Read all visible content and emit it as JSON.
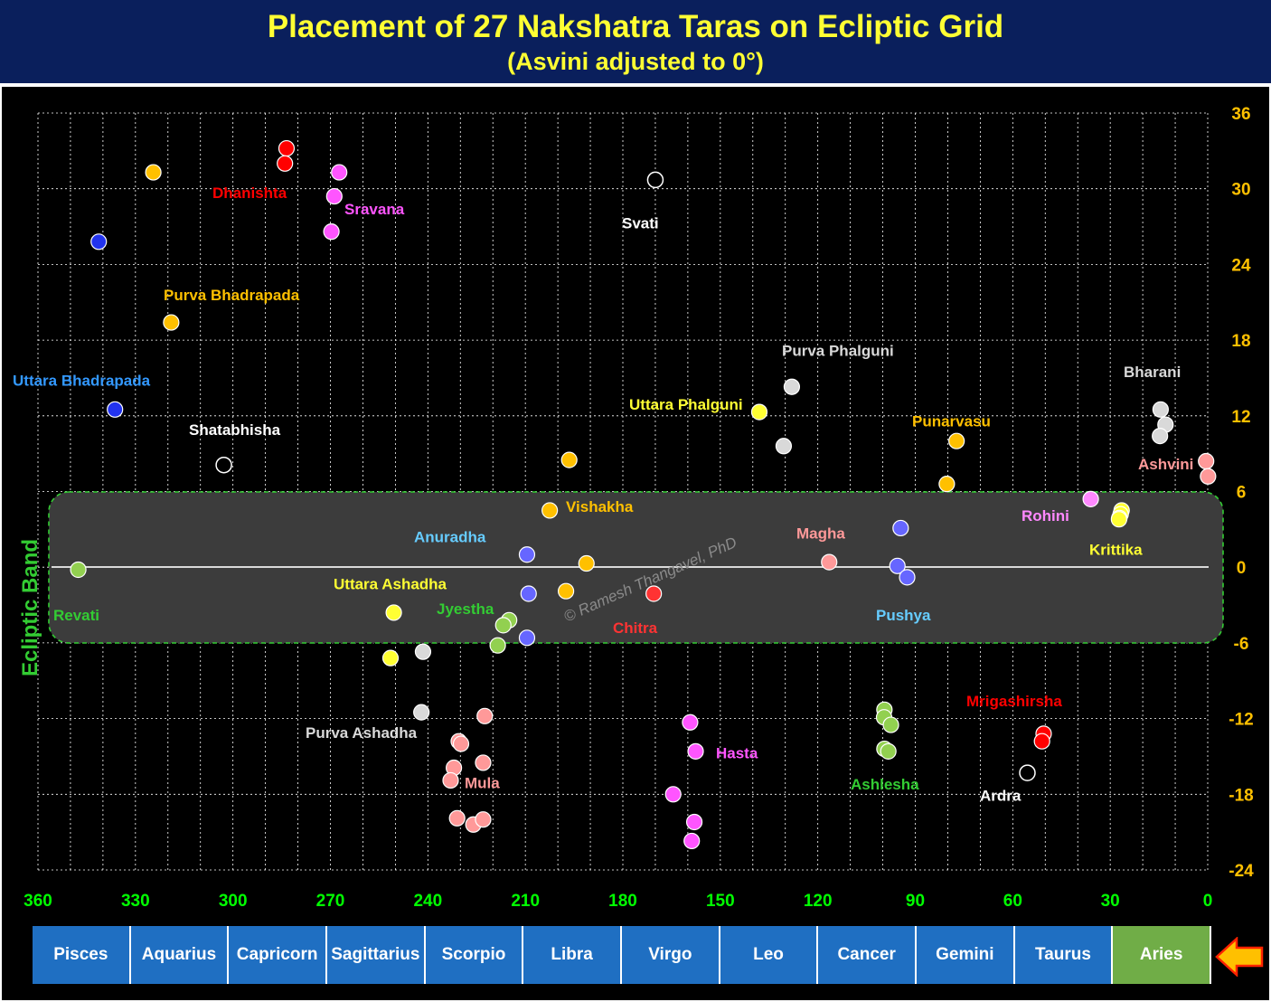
{
  "header": {
    "title": "Placement of 27 Nakshatra Taras on Ecliptic Grid",
    "subtitle": "(Asvini adjusted to 0°)"
  },
  "watermark": "© Ramesh Thangavel, PhD",
  "band_label": "Ecliptic  Band",
  "signs": [
    {
      "label": "Pisces",
      "color": "#1f6fc2"
    },
    {
      "label": "Aquarius",
      "color": "#1f6fc2"
    },
    {
      "label": "Capricorn",
      "color": "#1f6fc2"
    },
    {
      "label": "Sagittarius",
      "color": "#1f6fc2"
    },
    {
      "label": "Scorpio",
      "color": "#1f6fc2"
    },
    {
      "label": "Libra",
      "color": "#1f6fc2"
    },
    {
      "label": "Virgo",
      "color": "#1f6fc2"
    },
    {
      "label": "Leo",
      "color": "#1f6fc2"
    },
    {
      "label": "Cancer",
      "color": "#1f6fc2"
    },
    {
      "label": "Gemini",
      "color": "#1f6fc2"
    },
    {
      "label": "Taurus",
      "color": "#1f6fc2"
    },
    {
      "label": "Aries",
      "color": "#70ad47"
    }
  ],
  "chart_data": {
    "type": "scatter",
    "title": "Placement of 27 Nakshatra Taras on Ecliptic Grid",
    "subtitle": "(Asvini adjusted to 0°)",
    "x_reversed": true,
    "xlim": [
      360,
      0
    ],
    "ylim": [
      -24,
      36
    ],
    "x_ticks": [
      360,
      330,
      300,
      270,
      240,
      210,
      180,
      150,
      120,
      90,
      60,
      30,
      0
    ],
    "y_ticks": [
      36,
      30,
      24,
      18,
      12,
      6,
      0,
      -6,
      -12,
      -18,
      -24
    ],
    "y_axis_side": "right",
    "grid": true,
    "band": {
      "label": "Ecliptic  Band",
      "y_range": [
        -6,
        6
      ],
      "x_range": [
        357,
        0
      ]
    },
    "series": [
      {
        "name": "Ashvini",
        "color": "#ff9999",
        "label_color": "#ff9999",
        "label_pos": [
          362,
          8.2
        ],
        "points": [
          [
            0.5,
            8.4
          ],
          [
            -0.1,
            7.2
          ]
        ]
      },
      {
        "name": "Bharani",
        "color": "#d9d9d9",
        "label_color": "#d9d9d9",
        "label_pos": [
          359,
          15.5
        ],
        "points": [
          [
            14.5,
            12.5
          ],
          [
            13.0,
            11.3
          ],
          [
            14.7,
            10.4
          ]
        ]
      },
      {
        "name": "Krittika",
        "color": "#ffff33",
        "label_color": "#ffff33",
        "label_pos": [
          349,
          1.4
        ],
        "points": [
          [
            26.5,
            4.5
          ],
          [
            26.8,
            4.2
          ],
          [
            27.2,
            3.9
          ],
          [
            27.3,
            3.8
          ]
        ]
      },
      {
        "name": "Rohini",
        "color": "#ff88ff",
        "label_color": "#ff88ff",
        "label_pos": [
          368,
          4.1
        ],
        "points": [
          [
            36.0,
            5.4
          ]
        ]
      },
      {
        "name": "Mrigashirsha",
        "color": "#ff0000",
        "label_color": "#ff0000",
        "label_pos": [
          353,
          -10.6
        ],
        "points": [
          [
            50.5,
            -13.2
          ],
          [
            51.0,
            -13.8
          ]
        ]
      },
      {
        "name": "Ardra",
        "outline": "#ffffff",
        "label_color": "#ffffff",
        "label_pos": [
          353,
          -18.1
        ],
        "points": [
          [
            55.5,
            -16.3
          ]
        ]
      },
      {
        "name": "Punarvasu",
        "color": "#ffc000",
        "label_color": "#ffc000",
        "label_pos": [
          353,
          11.6
        ],
        "points": [
          [
            77.3,
            10.0
          ],
          [
            80.3,
            6.6
          ]
        ]
      },
      {
        "name": "Pushya",
        "color": "#6666ff",
        "label_color": "#66ccff",
        "label_pos": [
          351,
          -3.8
        ],
        "points": [
          [
            94.5,
            3.1
          ],
          [
            95.5,
            0.1
          ],
          [
            92.5,
            -0.8
          ]
        ]
      },
      {
        "name": "Ashlesha",
        "color": "#92d050",
        "label_color": "#33cc33",
        "label_pos": [
          352,
          -17.2
        ],
        "points": [
          [
            99.5,
            -11.3
          ],
          [
            99.6,
            -11.9
          ],
          [
            97.5,
            -12.5
          ],
          [
            99.5,
            -14.4
          ],
          [
            98.3,
            -14.6
          ]
        ]
      },
      {
        "name": "Magha",
        "color": "#ff9999",
        "label_color": "#ff9999",
        "label_pos": [
          374,
          2.7
        ],
        "points": [
          [
            116.5,
            0.4
          ]
        ]
      },
      {
        "name": "Purva  Phalguni",
        "color": "#d9d9d9",
        "label_color": "#d9d9d9",
        "label_pos": [
          382,
          17.2
        ],
        "points": [
          [
            128.0,
            14.3
          ],
          [
            130.5,
            9.6
          ]
        ]
      },
      {
        "name": "Uttara  Phalguni",
        "color": "#ffff33",
        "label_color": "#ffff33",
        "label_pos": [
          388,
          12.9
        ],
        "points": [
          [
            138.0,
            12.3
          ]
        ]
      },
      {
        "name": "Hasta",
        "color": "#ff55ff",
        "label_color": "#ff55ff",
        "label_pos": [
          391,
          -14.7
        ],
        "points": [
          [
            159.3,
            -12.3
          ],
          [
            157.6,
            -14.6
          ],
          [
            164.5,
            -18.0
          ],
          [
            158.0,
            -20.2
          ],
          [
            158.8,
            -21.7
          ]
        ]
      },
      {
        "name": "Chitra",
        "color": "#ff3333",
        "label_color": "#ff3333",
        "label_pos": [
          391,
          -4.8
        ],
        "points": [
          [
            170.5,
            -2.1
          ]
        ]
      },
      {
        "name": "Svati",
        "outline": "#ffffff",
        "label_color": "#ffffff",
        "label_pos": [
          391,
          27.3
        ],
        "points": [
          [
            170.0,
            30.7
          ]
        ]
      },
      {
        "name": "Vishakha",
        "color": "#ffc000",
        "label_color": "#ffc000",
        "label_pos": [
          369,
          4.8
        ],
        "points": [
          [
            196.5,
            8.5
          ],
          [
            202.5,
            4.5
          ],
          [
            191.2,
            0.3
          ],
          [
            197.5,
            -1.9
          ]
        ]
      },
      {
        "name": "Anuradha",
        "color": "#6666ff",
        "label_color": "#66ccff",
        "label_pos": [
          386,
          2.4
        ],
        "points": [
          [
            209.5,
            1.0
          ],
          [
            209.0,
            -2.1
          ],
          [
            209.5,
            -5.6
          ]
        ]
      },
      {
        "name": "Jyestha",
        "color": "#92d050",
        "label_color": "#33cc33",
        "label_pos": [
          404,
          -3.3
        ],
        "points": [
          [
            215.0,
            -4.2
          ],
          [
            216.8,
            -4.6
          ],
          [
            218.5,
            -6.2
          ]
        ]
      },
      {
        "name": "Mula",
        "color": "#ff9999",
        "label_color": "#ff9999",
        "label_pos": [
          392,
          -17.1
        ],
        "points": [
          [
            222.5,
            -11.8
          ],
          [
            230.5,
            -13.8
          ],
          [
            229.8,
            -14.0
          ],
          [
            223.0,
            -15.5
          ],
          [
            232.0,
            -15.9
          ],
          [
            233.0,
            -16.9
          ],
          [
            231.0,
            -19.9
          ],
          [
            226.0,
            -20.4
          ],
          [
            223.0,
            -20.0
          ]
        ]
      },
      {
        "name": "Purva  Ashadha",
        "color": "#d9d9d9",
        "label_color": "#d9d9d9",
        "label_pos": [
          380,
          -13.1
        ],
        "points": [
          [
            241.5,
            -6.7
          ],
          [
            242.0,
            -11.5
          ]
        ]
      },
      {
        "name": "Uttara  Ashadha",
        "color": "#ffff33",
        "label_color": "#ffff33",
        "label_pos": [
          376,
          -1.3
        ],
        "points": [
          [
            250.5,
            -3.6
          ],
          [
            251.5,
            -7.2
          ]
        ]
      },
      {
        "name": "Shatabhisha",
        "outline": "#ffffff",
        "label_color": "#ffffff",
        "label_pos": [
          351,
          10.9
        ],
        "points": [
          [
            302.8,
            8.1
          ]
        ]
      },
      {
        "name": "Sravana",
        "color": "#ff55ff",
        "label_color": "#ff55ff",
        "label_pos": [
          372,
          28.4
        ],
        "points": [
          [
            267.3,
            31.3
          ],
          [
            268.8,
            29.4
          ],
          [
            269.7,
            26.6
          ]
        ]
      },
      {
        "name": "Dhanishta",
        "color": "#ff0000",
        "label_color": "#ff0000",
        "label_pos": [
          356,
          29.7
        ],
        "points": [
          [
            283.5,
            33.2
          ],
          [
            284.0,
            32.0
          ]
        ]
      },
      {
        "name": "Purva  Bhadrapada",
        "color": "#ffc000",
        "label_color": "#ffc000",
        "label_pos": [
          360,
          21.6
        ],
        "points": [
          [
            324.5,
            31.3
          ],
          [
            319.0,
            19.4
          ]
        ]
      },
      {
        "name": "Uttara  Bhadrapada",
        "color": "#2233ee",
        "label_color": "#3399ff",
        "label_pos": [
          369,
          14.8
        ],
        "points": [
          [
            341.3,
            25.8
          ],
          [
            336.3,
            12.5
          ]
        ]
      },
      {
        "name": "Revati",
        "color": "#92d050",
        "label_color": "#33cc33",
        "label_pos": [
          366,
          -3.8
        ],
        "points": [
          [
            347.6,
            -0.2
          ]
        ]
      }
    ]
  }
}
